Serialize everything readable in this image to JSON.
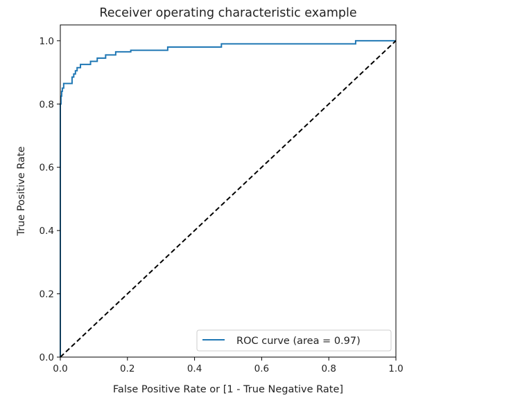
{
  "chart_data": {
    "type": "line",
    "title": "Receiver operating characteristic example",
    "xlabel": "False Positive Rate or [1 - True Negative Rate]",
    "ylabel": "True Positive Rate",
    "xlim": [
      0.0,
      1.0
    ],
    "ylim": [
      0.0,
      1.05
    ],
    "xticks": [
      "0.0",
      "0.2",
      "0.4",
      "0.6",
      "0.8",
      "1.0"
    ],
    "yticks": [
      "0.0",
      "0.2",
      "0.4",
      "0.6",
      "0.8",
      "1.0"
    ],
    "grid": false,
    "legend_position": "lower-right",
    "colors": {
      "roc": "#1f77b4",
      "diagonal": "#000000",
      "frame": "#000000"
    },
    "series": [
      {
        "name": "ROC curve (area = 0.97)",
        "style": "solid",
        "x": [
          0.0,
          0.0,
          0.002,
          0.002,
          0.004,
          0.004,
          0.006,
          0.006,
          0.01,
          0.01,
          0.035,
          0.035,
          0.04,
          0.04,
          0.045,
          0.045,
          0.05,
          0.05,
          0.06,
          0.06,
          0.09,
          0.09,
          0.11,
          0.11,
          0.135,
          0.135,
          0.165,
          0.165,
          0.21,
          0.21,
          0.32,
          0.32,
          0.48,
          0.48,
          0.88,
          0.88,
          1.0
        ],
        "y": [
          0.0,
          0.8,
          0.8,
          0.825,
          0.825,
          0.84,
          0.84,
          0.85,
          0.85,
          0.865,
          0.865,
          0.885,
          0.885,
          0.895,
          0.895,
          0.905,
          0.905,
          0.915,
          0.915,
          0.925,
          0.925,
          0.935,
          0.935,
          0.945,
          0.945,
          0.955,
          0.955,
          0.965,
          0.965,
          0.97,
          0.97,
          0.98,
          0.98,
          0.99,
          0.99,
          1.0,
          1.0
        ]
      },
      {
        "name": "",
        "style": "dashed",
        "x": [
          0.0,
          1.0
        ],
        "y": [
          0.0,
          1.0
        ]
      }
    ]
  }
}
